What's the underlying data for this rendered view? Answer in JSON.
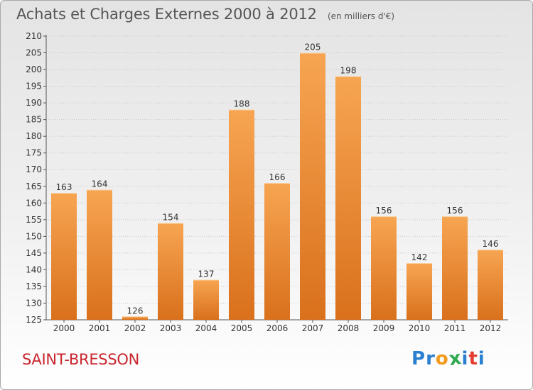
{
  "header": {
    "title": "Achats et Charges Externes 2000 à 2012",
    "subtitle": "(en milliers d'€)"
  },
  "footer": {
    "city": "SAINT-BRESSON",
    "logo_text": "Proxiti",
    "logo_letters": [
      {
        "ch": "P",
        "color": "#2b7fd0"
      },
      {
        "ch": "r",
        "color": "#2b7fd0"
      },
      {
        "ch": "o",
        "color": "#f29a1b"
      },
      {
        "ch": "x",
        "color": "#2fa84f"
      },
      {
        "ch": "i",
        "color": "#2b7fd0"
      },
      {
        "ch": "t",
        "color": "#e43a2f"
      },
      {
        "ch": "i",
        "color": "#2b7fd0"
      }
    ]
  },
  "chart_data": {
    "type": "bar",
    "title": "Achats et Charges Externes 2000 à 2012",
    "subtitle": "(en milliers d'€)",
    "categories": [
      "2000",
      "2001",
      "2002",
      "2003",
      "2004",
      "2005",
      "2006",
      "2007",
      "2008",
      "2009",
      "2010",
      "2011",
      "2012"
    ],
    "values": [
      163,
      164,
      126,
      154,
      137,
      188,
      166,
      205,
      198,
      156,
      142,
      156,
      146
    ],
    "ylim": [
      125,
      210
    ],
    "yticks": [
      125,
      130,
      135,
      140,
      145,
      150,
      155,
      160,
      165,
      170,
      175,
      180,
      185,
      190,
      195,
      200,
      205,
      210
    ],
    "grid": true,
    "bar_color_top": "#f7a552",
    "bar_color_bottom": "#d9701c",
    "legend": "none"
  }
}
